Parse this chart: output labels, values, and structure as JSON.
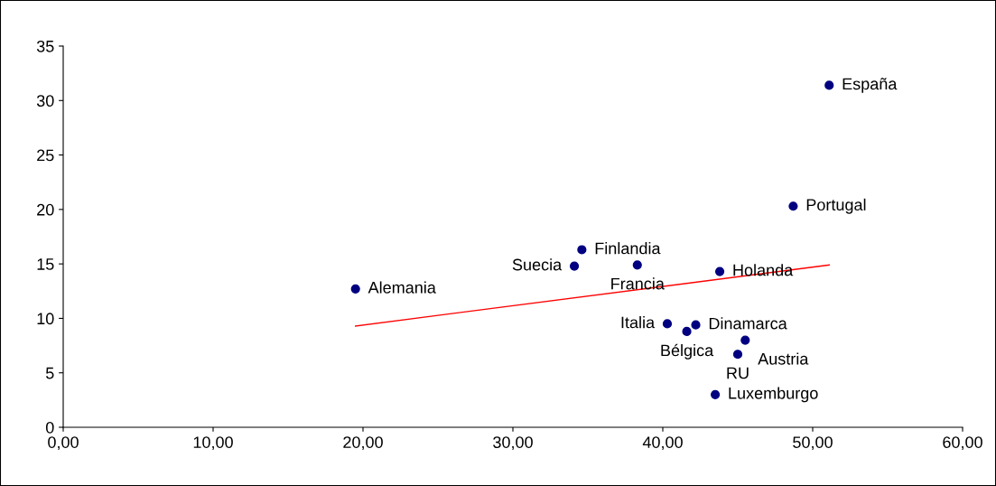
{
  "chart_data": {
    "type": "scatter",
    "x": [
      51.1,
      48.7,
      34.6,
      34.1,
      38.3,
      43.8,
      19.5,
      40.3,
      42.2,
      41.6,
      45.5,
      45.0,
      43.5
    ],
    "series": [
      {
        "color": "#000080",
        "marker": "circle",
        "values": [
          31.4,
          20.3,
          16.3,
          14.8,
          14.9,
          14.3,
          12.7,
          9.5,
          9.4,
          8.8,
          8.0,
          6.7,
          3.0
        ]
      },
      {
        "type": "line",
        "marker": "none",
        "color": "#ff0000",
        "x": [
          19.5,
          51.1
        ],
        "values": [
          9.3,
          14.9
        ]
      }
    ],
    "annotations": [
      {
        "text": "España",
        "x": 51.1,
        "y": 31.4
      },
      {
        "text": "Portugal",
        "x": 48.7,
        "y": 20.3
      },
      {
        "text": "Finlandia",
        "x": 34.6,
        "y": 16.3
      },
      {
        "text": "Suecia",
        "x": 34.1,
        "y": 14.8
      },
      {
        "text": "Francia",
        "x": 38.3,
        "y": 14.9
      },
      {
        "text": "Holanda",
        "x": 43.8,
        "y": 14.3
      },
      {
        "text": "Alemania",
        "x": 19.5,
        "y": 12.7
      },
      {
        "text": "Italia",
        "x": 40.3,
        "y": 9.5
      },
      {
        "text": "Dinamarca",
        "x": 42.2,
        "y": 9.4
      },
      {
        "text": "Bélgica",
        "x": 41.6,
        "y": 8.8
      },
      {
        "text": "Austria",
        "x": 45.5,
        "y": 8.0
      },
      {
        "text": "RU",
        "x": 45.0,
        "y": 6.7
      },
      {
        "text": "Luxemburgo",
        "x": 43.5,
        "y": 3.0
      }
    ],
    "xlim": [
      0,
      60
    ],
    "xticks": [
      {
        "value": 0,
        "label": "0,00"
      },
      {
        "value": 10,
        "label": "10,00"
      },
      {
        "value": 20,
        "label": "20,00"
      },
      {
        "value": 30,
        "label": "30,00"
      },
      {
        "value": 40,
        "label": "40,00"
      },
      {
        "value": 50,
        "label": "50,00"
      },
      {
        "value": 60,
        "label": "60,00"
      }
    ],
    "ylim": [
      0,
      35
    ],
    "yticks": [
      0,
      5,
      10,
      15,
      20,
      25,
      30,
      35
    ],
    "grid": false
  }
}
